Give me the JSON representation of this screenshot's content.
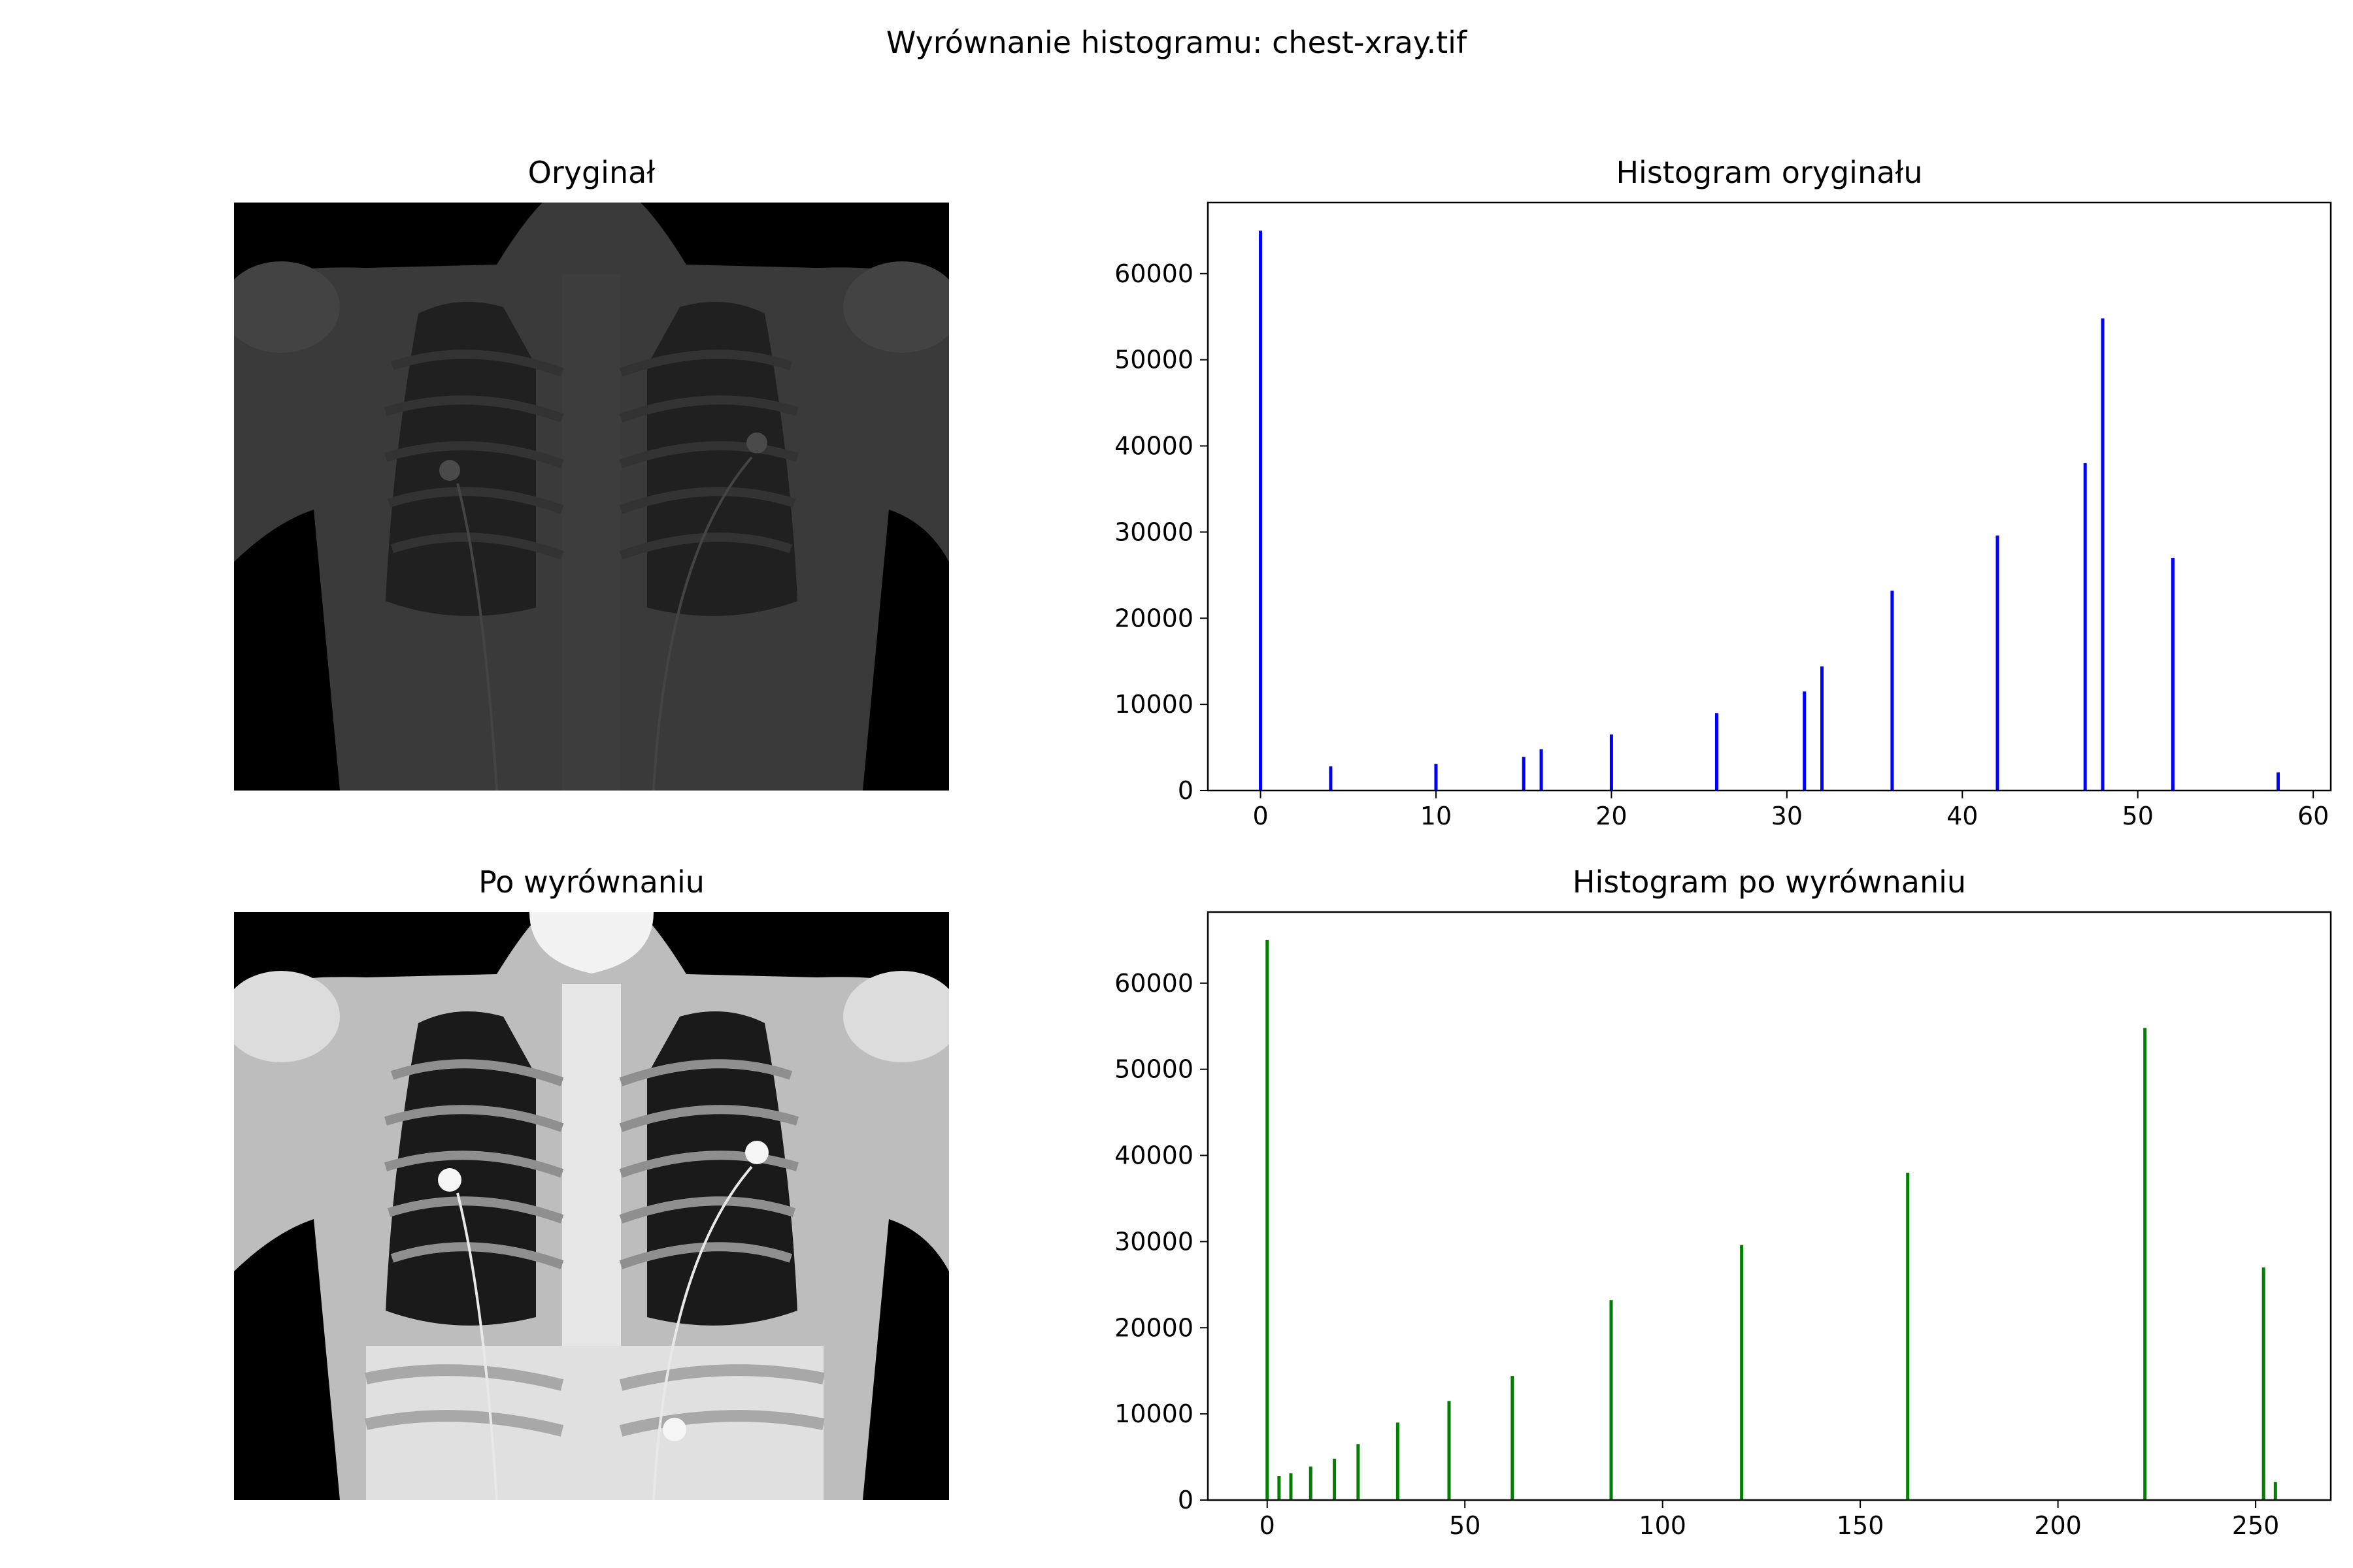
{
  "figure": {
    "title": "Wyrównanie histogramu: chest-xray.tif"
  },
  "panels": {
    "original_image": {
      "title": "Oryginał"
    },
    "equalized_image": {
      "title": "Po wyrównaniu"
    }
  },
  "colors": {
    "hist_original": "#0000ff",
    "hist_equalized": "#008000"
  },
  "chart_data": [
    {
      "type": "bar",
      "title": "Histogram oryginału",
      "xlabel": "",
      "ylabel": "",
      "xlim": [
        -3,
        61
      ],
      "ylim": [
        0,
        68250
      ],
      "xticks": [
        0,
        10,
        20,
        30,
        40,
        50,
        60
      ],
      "yticks": [
        0,
        10000,
        20000,
        30000,
        40000,
        50000,
        60000
      ],
      "x": [
        0,
        4,
        10,
        15,
        16,
        20,
        26,
        31,
        32,
        36,
        42,
        47,
        48,
        52,
        58
      ],
      "values": [
        65000,
        2800,
        3100,
        3900,
        4800,
        6500,
        9000,
        11500,
        14400,
        23200,
        29600,
        38000,
        54800,
        27000,
        2100
      ],
      "color": "#0000ff"
    },
    {
      "type": "bar",
      "title": "Histogram po wyrównaniu",
      "xlabel": "",
      "ylabel": "",
      "xlim": [
        -15,
        269
      ],
      "ylim": [
        0,
        68250
      ],
      "xticks": [
        0,
        50,
        100,
        150,
        200,
        250
      ],
      "yticks": [
        0,
        10000,
        20000,
        30000,
        40000,
        50000,
        60000
      ],
      "x": [
        0,
        3,
        6,
        11,
        17,
        23,
        33,
        46,
        62,
        87,
        120,
        162,
        222,
        252,
        255
      ],
      "values": [
        65000,
        2800,
        3100,
        3900,
        4800,
        6500,
        9000,
        11500,
        14400,
        23200,
        29600,
        38000,
        54800,
        27000,
        2100
      ],
      "color": "#008000"
    }
  ]
}
